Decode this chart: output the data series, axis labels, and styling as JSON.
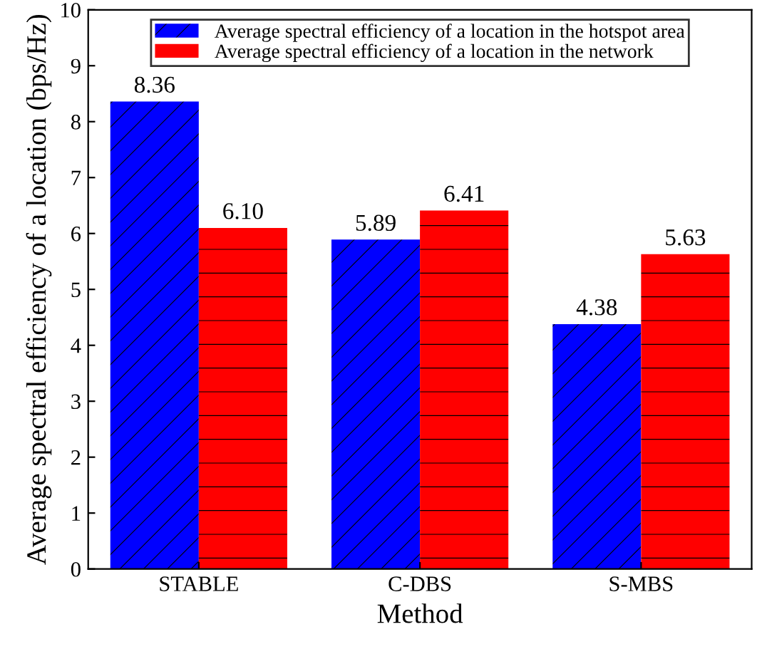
{
  "chart_data": {
    "type": "bar",
    "xlabel": "Method",
    "ylabel": "Average spectral efficiency of a location (bps/Hz)",
    "categories": [
      "STABLE",
      "C-DBS",
      "S-MBS"
    ],
    "series": [
      {
        "name": "Average spectral efficiency of a location in the hotspot area",
        "color": "#0000ff",
        "values": [
          8.36,
          5.89,
          4.38
        ],
        "value_labels": [
          "8.36",
          "5.89",
          "4.38"
        ]
      },
      {
        "name": "Average spectral efficiency of a location in the network",
        "color": "#ff0000",
        "values": [
          6.1,
          6.41,
          5.63
        ],
        "value_labels": [
          "6.10",
          "6.41",
          "5.63"
        ]
      }
    ],
    "ylim": [
      0,
      10
    ],
    "yticks": [
      0,
      1,
      2,
      3,
      4,
      5,
      6,
      7,
      8,
      9,
      10
    ],
    "grid": false,
    "legend": "top"
  }
}
